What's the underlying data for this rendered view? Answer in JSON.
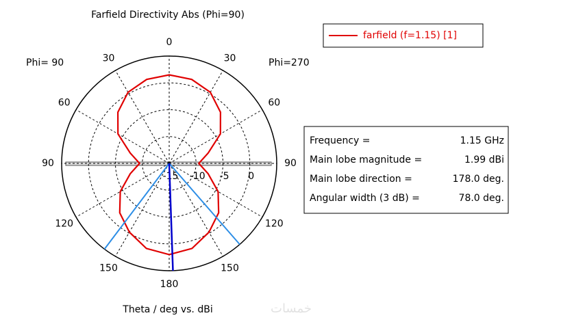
{
  "chart_data": {
    "type": "polar",
    "title": "Farfield Directivity Abs (Phi=90)",
    "xlabel": "Theta / deg vs. dBi",
    "left_label": "Phi= 90",
    "right_label": "Phi=270",
    "rlim": [
      -15,
      5
    ],
    "rticks": [
      -15,
      -10,
      -5,
      0
    ],
    "angle_ticks": [
      0,
      30,
      60,
      90,
      120,
      150,
      180
    ],
    "series": [
      {
        "name": "farfield (f=1.15) [1]",
        "color": "#e00000",
        "theta": [
          0,
          15,
          30,
          45,
          60,
          75,
          90,
          105,
          120,
          135,
          150,
          165,
          180,
          195,
          210,
          225,
          240,
          255,
          270,
          285,
          300,
          315,
          330,
          345
        ],
        "values": [
          1.5,
          1.2,
          0.3,
          -1.5,
          -4,
          -7.5,
          -9.5,
          -7.5,
          -4.5,
          -2,
          -0.2,
          1.4,
          1.99,
          1.4,
          -0.2,
          -2,
          -4.5,
          -7.5,
          -9.5,
          -7.5,
          -4,
          -1.5,
          0.3,
          1.2
        ]
      }
    ],
    "main_direction": 178,
    "beam_edges": [
      139,
      217
    ],
    "info": [
      {
        "label": "Frequency =",
        "value": "1.15 GHz"
      },
      {
        "label": "Main lobe magnitude =",
        "value": "1.99 dBi"
      },
      {
        "label": "Main lobe direction =",
        "value": "178.0 deg."
      },
      {
        "label": "Angular width (3 dB) =",
        "value": "78.0 deg."
      }
    ],
    "watermark": "خمسات"
  }
}
